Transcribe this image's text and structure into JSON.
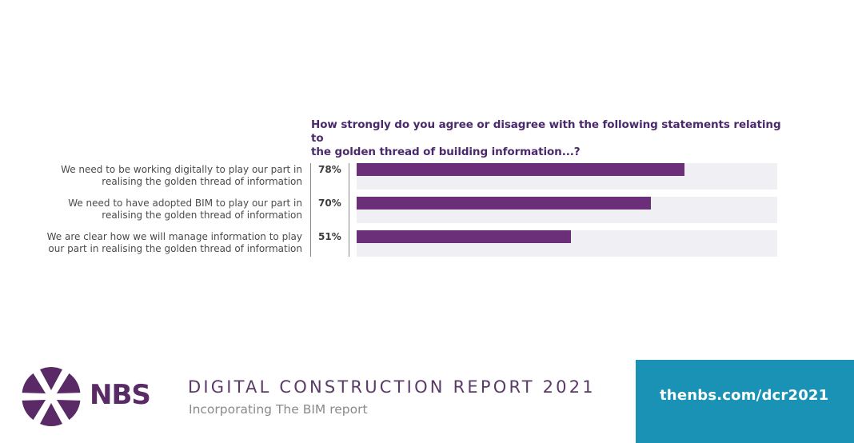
{
  "chart_data": {
    "type": "bar",
    "orientation": "horizontal",
    "title": "How strongly do you agree or disagree with the following statements relating to the golden thread of building information...?",
    "title_lines": [
      "How strongly do you agree or disagree with the following statements relating to",
      "the golden thread of building information...?"
    ],
    "categories": [
      [
        "We need to be working digitally to play our part in",
        "realising the golden thread of information"
      ],
      [
        "We need to have adopted BIM to play our part in",
        "realising the golden thread of information"
      ],
      [
        "We are clear how we will manage information to play",
        "our part in realising the golden thread of information"
      ]
    ],
    "values": [
      78,
      70,
      51
    ],
    "value_labels": [
      "78%",
      "70%",
      "51%"
    ],
    "xlim": [
      0,
      100
    ],
    "unit": "%",
    "grid": false,
    "legend": "none",
    "colors": {
      "bar": "#6a2f78",
      "track": "#f0eff3",
      "title": "#4a2a6b"
    }
  },
  "footer": {
    "logo_text": "NBS",
    "logo_icon": "nbs-star-icon",
    "report_title": "DIGITAL CONSTRUCTION REPORT 2021",
    "report_subtitle": "Incorporating The BIM report",
    "url": "thenbs.com/dcr2021",
    "colors": {
      "brand_purple": "#5a2a66",
      "url_panel": "#1a92b6"
    }
  }
}
